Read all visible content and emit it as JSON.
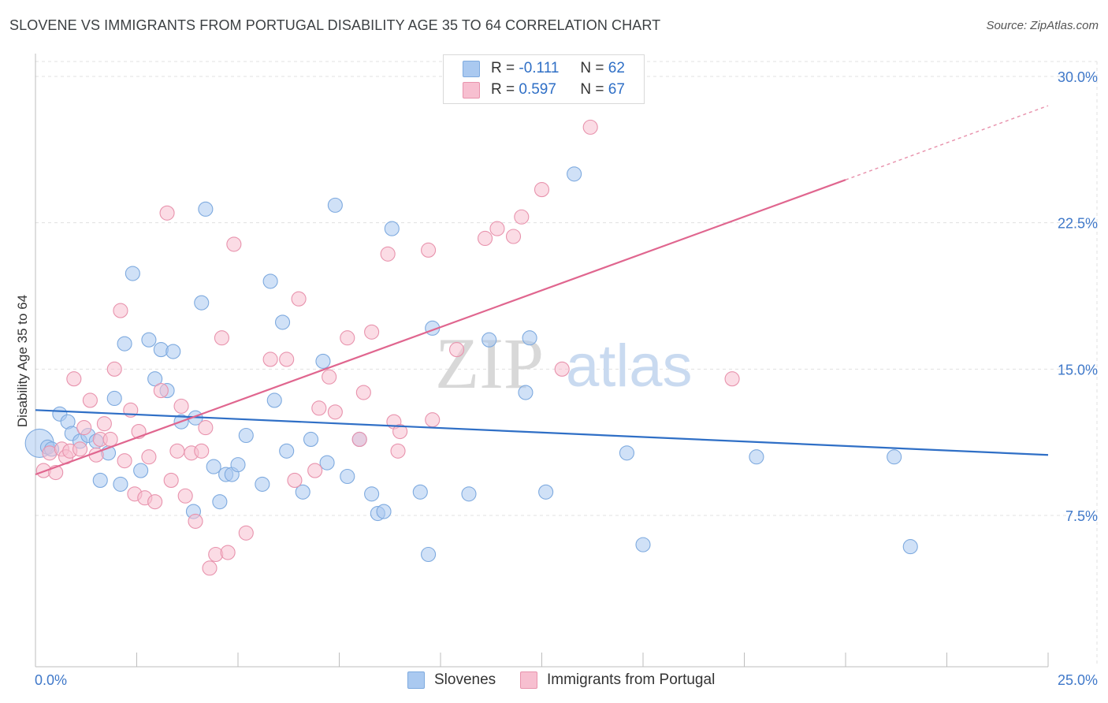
{
  "title": "SLOVENE VS IMMIGRANTS FROM PORTUGAL DISABILITY AGE 35 TO 64 CORRELATION CHART",
  "source": "Source: ZipAtlas.com",
  "watermark": {
    "part1": "ZIP",
    "part2": "atlas"
  },
  "legend": {
    "rows": [
      {
        "r_label": "R = ",
        "r_value": "-0.111",
        "n_label": "N = ",
        "n_value": "62",
        "color": "#aac9f0",
        "border": "#7eaadf"
      },
      {
        "r_label": "R = ",
        "r_value": "0.597",
        "n_label": "N = ",
        "n_value": "67",
        "color": "#f7bfd0",
        "border": "#e893ad"
      }
    ]
  },
  "bottom_legend": [
    {
      "label": "Slovenes",
      "color": "#aac9f0",
      "border": "#7eaadf"
    },
    {
      "label": "Immigrants from Portugal",
      "color": "#f7bfd0",
      "border": "#e893ad"
    }
  ],
  "chart_data": {
    "type": "scatter",
    "title": "SLOVENE VS IMMIGRANTS FROM PORTUGAL DISABILITY AGE 35 TO 64 CORRELATION CHART",
    "xlabel": "",
    "ylabel": "Disability Age 35 to 64",
    "xlim": [
      0,
      25
    ],
    "ylim": [
      0,
      31
    ],
    "x_tick_labels": [
      "0.0%",
      "25.0%"
    ],
    "y_ticks": [
      7.5,
      15.0,
      22.5,
      30.0
    ],
    "y_tick_labels": [
      "7.5%",
      "15.0%",
      "22.5%",
      "30.0%"
    ],
    "grid": true,
    "legend_position": "top-center",
    "series": [
      {
        "name": "Slovenes",
        "color": "#7eaadf",
        "fill": "#aac9f0",
        "trend": {
          "x": [
            0,
            25
          ],
          "y": [
            12.9,
            10.6
          ]
        },
        "points": [
          [
            0.1,
            11.2
          ],
          [
            0.3,
            11.0
          ],
          [
            0.4,
            10.9
          ],
          [
            0.6,
            12.7
          ],
          [
            0.8,
            12.3
          ],
          [
            0.9,
            11.7
          ],
          [
            1.1,
            11.3
          ],
          [
            1.3,
            11.6
          ],
          [
            1.5,
            11.3
          ],
          [
            1.6,
            9.3
          ],
          [
            1.8,
            10.7
          ],
          [
            1.95,
            13.5
          ],
          [
            2.1,
            9.1
          ],
          [
            2.2,
            16.3
          ],
          [
            2.4,
            19.9
          ],
          [
            2.6,
            9.8
          ],
          [
            2.8,
            16.5
          ],
          [
            2.95,
            14.5
          ],
          [
            3.1,
            16.0
          ],
          [
            3.25,
            13.9
          ],
          [
            3.4,
            15.9
          ],
          [
            3.6,
            12.3
          ],
          [
            3.9,
            7.7
          ],
          [
            3.95,
            12.5
          ],
          [
            4.1,
            18.4
          ],
          [
            4.2,
            23.2
          ],
          [
            4.4,
            10.0
          ],
          [
            4.55,
            8.2
          ],
          [
            4.7,
            9.6
          ],
          [
            4.85,
            9.6
          ],
          [
            5.0,
            10.1
          ],
          [
            5.2,
            11.6
          ],
          [
            5.6,
            9.1
          ],
          [
            5.8,
            19.5
          ],
          [
            5.9,
            13.4
          ],
          [
            6.1,
            17.4
          ],
          [
            6.2,
            10.8
          ],
          [
            6.6,
            8.7
          ],
          [
            6.8,
            11.4
          ],
          [
            7.1,
            15.4
          ],
          [
            7.2,
            10.2
          ],
          [
            7.4,
            23.4
          ],
          [
            7.7,
            9.5
          ],
          [
            8.0,
            11.4
          ],
          [
            8.3,
            8.6
          ],
          [
            8.45,
            7.6
          ],
          [
            8.6,
            7.7
          ],
          [
            8.8,
            22.2
          ],
          [
            9.5,
            8.7
          ],
          [
            9.7,
            5.5
          ],
          [
            9.8,
            17.1
          ],
          [
            10.7,
            8.6
          ],
          [
            11.2,
            16.5
          ],
          [
            12.1,
            13.8
          ],
          [
            12.2,
            16.6
          ],
          [
            12.6,
            8.7
          ],
          [
            13.3,
            25.0
          ],
          [
            14.6,
            10.7
          ],
          [
            15.0,
            6.0
          ],
          [
            17.8,
            10.5
          ],
          [
            21.2,
            10.5
          ],
          [
            21.6,
            5.9
          ]
        ]
      },
      {
        "name": "Immigrants from Portugal",
        "color": "#e893ad",
        "fill": "#f7bfd0",
        "trend": {
          "x": [
            0,
            20
          ],
          "y": [
            9.6,
            24.7
          ]
        },
        "trend_extension": {
          "x": [
            20,
            25
          ],
          "y": [
            24.7,
            28.5
          ]
        },
        "points": [
          [
            0.2,
            9.8
          ],
          [
            0.35,
            10.7
          ],
          [
            0.5,
            9.7
          ],
          [
            0.65,
            10.9
          ],
          [
            0.75,
            10.5
          ],
          [
            0.85,
            10.8
          ],
          [
            0.95,
            14.5
          ],
          [
            1.1,
            10.9
          ],
          [
            1.2,
            12.0
          ],
          [
            1.35,
            13.4
          ],
          [
            1.5,
            10.6
          ],
          [
            1.6,
            11.4
          ],
          [
            1.7,
            12.2
          ],
          [
            1.85,
            11.4
          ],
          [
            1.95,
            15.0
          ],
          [
            2.1,
            18.0
          ],
          [
            2.2,
            10.3
          ],
          [
            2.35,
            12.9
          ],
          [
            2.45,
            8.6
          ],
          [
            2.55,
            11.8
          ],
          [
            2.7,
            8.4
          ],
          [
            2.8,
            10.5
          ],
          [
            2.95,
            8.2
          ],
          [
            3.1,
            13.9
          ],
          [
            3.25,
            23.0
          ],
          [
            3.35,
            9.3
          ],
          [
            3.5,
            10.8
          ],
          [
            3.6,
            13.1
          ],
          [
            3.7,
            8.5
          ],
          [
            3.85,
            10.7
          ],
          [
            3.95,
            7.2
          ],
          [
            4.1,
            10.8
          ],
          [
            4.2,
            12.0
          ],
          [
            4.3,
            4.8
          ],
          [
            4.45,
            5.5
          ],
          [
            4.6,
            16.6
          ],
          [
            4.75,
            5.6
          ],
          [
            4.9,
            21.4
          ],
          [
            5.2,
            6.6
          ],
          [
            5.8,
            15.5
          ],
          [
            6.2,
            15.5
          ],
          [
            6.4,
            9.3
          ],
          [
            6.5,
            18.6
          ],
          [
            6.9,
            9.8
          ],
          [
            7.0,
            13.0
          ],
          [
            7.25,
            14.6
          ],
          [
            7.4,
            12.8
          ],
          [
            7.7,
            16.6
          ],
          [
            8.0,
            11.4
          ],
          [
            8.1,
            13.8
          ],
          [
            8.3,
            16.9
          ],
          [
            8.7,
            20.9
          ],
          [
            8.85,
            12.3
          ],
          [
            8.95,
            10.8
          ],
          [
            9.0,
            11.8
          ],
          [
            9.7,
            21.1
          ],
          [
            9.8,
            12.4
          ],
          [
            10.4,
            16.0
          ],
          [
            11.1,
            21.7
          ],
          [
            11.4,
            22.2
          ],
          [
            11.8,
            21.8
          ],
          [
            12.0,
            22.8
          ],
          [
            12.5,
            24.2
          ],
          [
            13.0,
            15.0
          ],
          [
            13.6,
            29.0
          ],
          [
            13.7,
            27.4
          ],
          [
            17.2,
            14.5
          ]
        ]
      }
    ]
  }
}
